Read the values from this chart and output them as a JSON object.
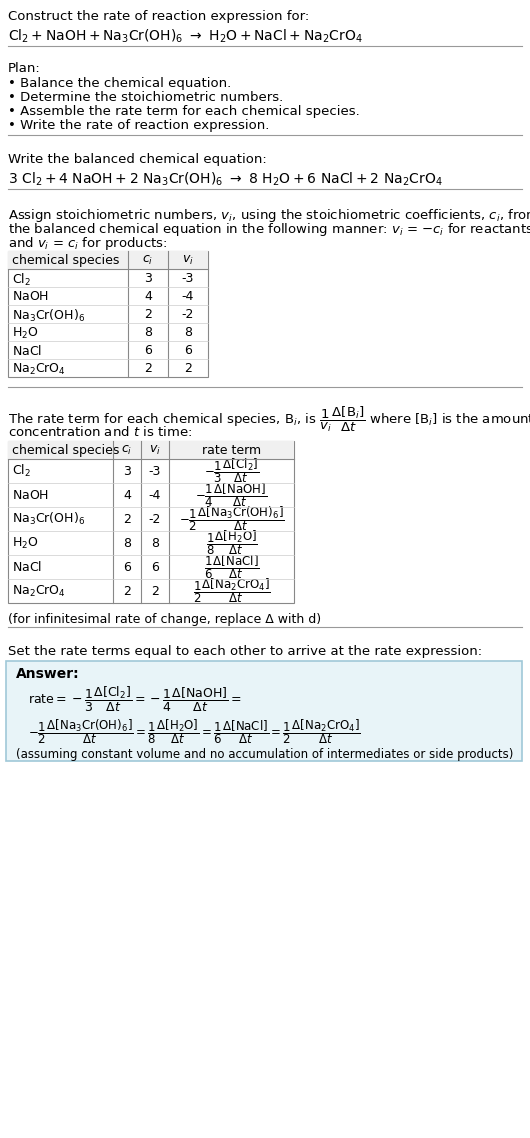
{
  "bg_color": "#ffffff",
  "title_line1": "Construct the rate of reaction expression for:",
  "plan_header": "Plan:",
  "plan_items": [
    "• Balance the chemical equation.",
    "• Determine the stoichiometric numbers.",
    "• Assemble the rate term for each chemical species.",
    "• Write the rate of reaction expression."
  ],
  "balanced_header": "Write the balanced chemical equation:",
  "table1_headers": [
    "chemical species",
    "c_i",
    "v_i"
  ],
  "table1_rows": [
    [
      "Cl_2",
      "3",
      "-3"
    ],
    [
      "NaOH",
      "4",
      "-4"
    ],
    [
      "Na_3Cr(OH)_6",
      "2",
      "-2"
    ],
    [
      "H_2O",
      "8",
      "8"
    ],
    [
      "NaCl",
      "6",
      "6"
    ],
    [
      "Na_2CrO_4",
      "2",
      "2"
    ]
  ],
  "table2_headers": [
    "chemical species",
    "c_i",
    "v_i",
    "rate term"
  ],
  "infinitesimal_note": "(for infinitesimal rate of change, replace Δ with d)",
  "set_rate_header": "Set the rate terms equal to each other to arrive at the rate expression:",
  "answer_box_color": "#e8f4f8",
  "answer_border_color": "#a0c8d8",
  "font_size": 9.5,
  "table_font_size": 9.0
}
